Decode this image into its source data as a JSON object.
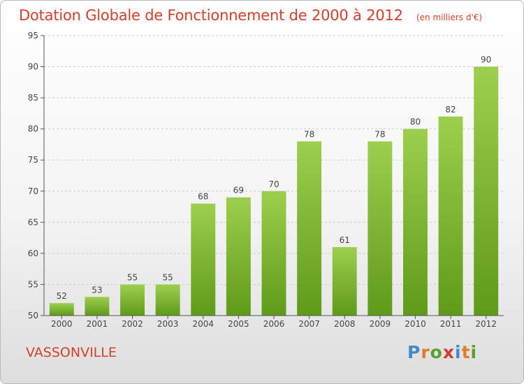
{
  "chart_data": {
    "type": "bar",
    "title": "Dotation Globale de Fonctionnement de 2000 à 2012",
    "unit_label": "(en milliers d'€)",
    "categories": [
      "2000",
      "2001",
      "2002",
      "2003",
      "2004",
      "2005",
      "2006",
      "2007",
      "2008",
      "2009",
      "2010",
      "2011",
      "2012"
    ],
    "values": [
      52,
      53,
      55,
      55,
      68,
      69,
      70,
      78,
      61,
      78,
      80,
      82,
      90
    ],
    "ylim": [
      50,
      95
    ],
    "yticks": [
      50,
      55,
      60,
      65,
      70,
      75,
      80,
      85,
      90,
      95
    ],
    "grid": true,
    "bar_color_top": "#9dcf4e",
    "bar_color_bottom": "#5f9a19"
  },
  "commune_name": "VASSONVILLE",
  "logo": {
    "text": "Proxiti"
  }
}
